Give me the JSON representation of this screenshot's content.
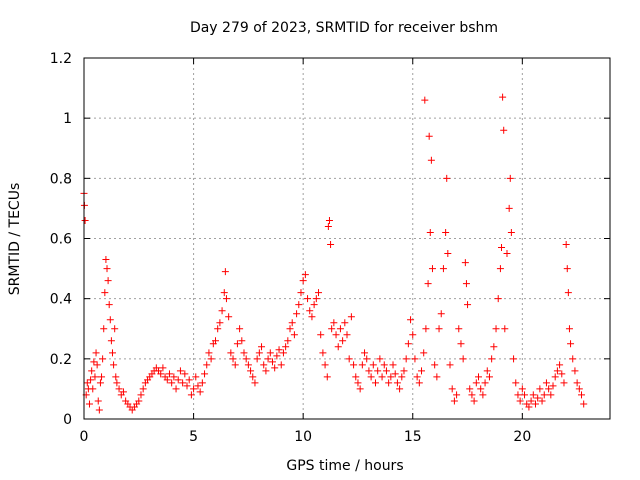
{
  "chart_data": {
    "type": "scatter",
    "title": "Day 279 of 2023, SRMTID for receiver bshm",
    "xlabel": "GPS time / hours",
    "ylabel": "SRMTID / TECUs",
    "xlim": [
      0,
      24
    ],
    "ylim": [
      0,
      1.2
    ],
    "x_ticks": [
      0,
      5,
      10,
      15,
      20
    ],
    "x_tick_labels": [
      "0",
      "5",
      "10",
      "15",
      "20"
    ],
    "y_ticks": [
      0,
      0.2,
      0.4,
      0.6,
      0.8,
      1.0,
      1.2
    ],
    "y_tick_labels": [
      "0",
      "0.2",
      "0.4",
      "0.6",
      "0.8",
      "1",
      "1.2"
    ],
    "grid": true,
    "marker": "+",
    "color": "#ff0000",
    "series": [
      {
        "name": "SRMTID",
        "points": [
          [
            0.0,
            0.75
          ],
          [
            0.02,
            0.71
          ],
          [
            0.05,
            0.66
          ],
          [
            0.1,
            0.08
          ],
          [
            0.15,
            0.12
          ],
          [
            0.2,
            0.1
          ],
          [
            0.25,
            0.05
          ],
          [
            0.3,
            0.13
          ],
          [
            0.35,
            0.16
          ],
          [
            0.4,
            0.1
          ],
          [
            0.45,
            0.19
          ],
          [
            0.5,
            0.14
          ],
          [
            0.55,
            0.22
          ],
          [
            0.6,
            0.18
          ],
          [
            0.65,
            0.06
          ],
          [
            0.7,
            0.03
          ],
          [
            0.75,
            0.12
          ],
          [
            0.8,
            0.14
          ],
          [
            0.85,
            0.2
          ],
          [
            0.9,
            0.3
          ],
          [
            0.95,
            0.42
          ],
          [
            1.0,
            0.53
          ],
          [
            1.05,
            0.5
          ],
          [
            1.1,
            0.46
          ],
          [
            1.15,
            0.38
          ],
          [
            1.2,
            0.33
          ],
          [
            1.25,
            0.26
          ],
          [
            1.3,
            0.22
          ],
          [
            1.35,
            0.18
          ],
          [
            1.4,
            0.3
          ],
          [
            1.45,
            0.14
          ],
          [
            1.5,
            0.12
          ],
          [
            1.6,
            0.1
          ],
          [
            1.7,
            0.08
          ],
          [
            1.8,
            0.09
          ],
          [
            1.9,
            0.06
          ],
          [
            2.0,
            0.05
          ],
          [
            2.1,
            0.04
          ],
          [
            2.2,
            0.03
          ],
          [
            2.3,
            0.04
          ],
          [
            2.4,
            0.05
          ],
          [
            2.5,
            0.06
          ],
          [
            2.6,
            0.08
          ],
          [
            2.7,
            0.1
          ],
          [
            2.8,
            0.12
          ],
          [
            2.9,
            0.13
          ],
          [
            3.0,
            0.14
          ],
          [
            3.1,
            0.15
          ],
          [
            3.2,
            0.16
          ],
          [
            3.3,
            0.17
          ],
          [
            3.4,
            0.16
          ],
          [
            3.5,
            0.15
          ],
          [
            3.6,
            0.17
          ],
          [
            3.7,
            0.14
          ],
          [
            3.8,
            0.13
          ],
          [
            3.9,
            0.15
          ],
          [
            4.0,
            0.12
          ],
          [
            4.1,
            0.14
          ],
          [
            4.2,
            0.1
          ],
          [
            4.3,
            0.13
          ],
          [
            4.4,
            0.16
          ],
          [
            4.5,
            0.12
          ],
          [
            4.6,
            0.15
          ],
          [
            4.7,
            0.11
          ],
          [
            4.8,
            0.13
          ],
          [
            4.9,
            0.08
          ],
          [
            5.0,
            0.1
          ],
          [
            5.1,
            0.14
          ],
          [
            5.2,
            0.11
          ],
          [
            5.3,
            0.09
          ],
          [
            5.4,
            0.12
          ],
          [
            5.5,
            0.15
          ],
          [
            5.6,
            0.18
          ],
          [
            5.7,
            0.22
          ],
          [
            5.8,
            0.2
          ],
          [
            5.9,
            0.25
          ],
          [
            6.0,
            0.26
          ],
          [
            6.1,
            0.3
          ],
          [
            6.2,
            0.32
          ],
          [
            6.3,
            0.36
          ],
          [
            6.4,
            0.42
          ],
          [
            6.45,
            0.49
          ],
          [
            6.5,
            0.4
          ],
          [
            6.6,
            0.34
          ],
          [
            6.7,
            0.22
          ],
          [
            6.8,
            0.2
          ],
          [
            6.9,
            0.18
          ],
          [
            7.0,
            0.25
          ],
          [
            7.1,
            0.3
          ],
          [
            7.2,
            0.26
          ],
          [
            7.3,
            0.22
          ],
          [
            7.4,
            0.2
          ],
          [
            7.5,
            0.18
          ],
          [
            7.6,
            0.16
          ],
          [
            7.7,
            0.14
          ],
          [
            7.8,
            0.12
          ],
          [
            7.9,
            0.2
          ],
          [
            8.0,
            0.22
          ],
          [
            8.1,
            0.24
          ],
          [
            8.2,
            0.18
          ],
          [
            8.3,
            0.16
          ],
          [
            8.4,
            0.2
          ],
          [
            8.5,
            0.22
          ],
          [
            8.6,
            0.19
          ],
          [
            8.7,
            0.17
          ],
          [
            8.8,
            0.21
          ],
          [
            8.9,
            0.23
          ],
          [
            9.0,
            0.18
          ],
          [
            9.1,
            0.22
          ],
          [
            9.2,
            0.24
          ],
          [
            9.3,
            0.26
          ],
          [
            9.4,
            0.3
          ],
          [
            9.5,
            0.32
          ],
          [
            9.6,
            0.28
          ],
          [
            9.7,
            0.35
          ],
          [
            9.8,
            0.38
          ],
          [
            9.9,
            0.42
          ],
          [
            10.0,
            0.46
          ],
          [
            10.1,
            0.48
          ],
          [
            10.2,
            0.4
          ],
          [
            10.3,
            0.36
          ],
          [
            10.4,
            0.34
          ],
          [
            10.5,
            0.38
          ],
          [
            10.6,
            0.4
          ],
          [
            10.7,
            0.42
          ],
          [
            10.8,
            0.28
          ],
          [
            10.9,
            0.22
          ],
          [
            11.0,
            0.18
          ],
          [
            11.1,
            0.14
          ],
          [
            11.15,
            0.64
          ],
          [
            11.2,
            0.66
          ],
          [
            11.25,
            0.58
          ],
          [
            11.3,
            0.3
          ],
          [
            11.4,
            0.32
          ],
          [
            11.5,
            0.28
          ],
          [
            11.6,
            0.24
          ],
          [
            11.7,
            0.3
          ],
          [
            11.8,
            0.26
          ],
          [
            11.9,
            0.32
          ],
          [
            12.0,
            0.28
          ],
          [
            12.1,
            0.2
          ],
          [
            12.2,
            0.34
          ],
          [
            12.3,
            0.18
          ],
          [
            12.4,
            0.14
          ],
          [
            12.5,
            0.12
          ],
          [
            12.6,
            0.1
          ],
          [
            12.7,
            0.18
          ],
          [
            12.8,
            0.22
          ],
          [
            12.9,
            0.2
          ],
          [
            13.0,
            0.16
          ],
          [
            13.1,
            0.14
          ],
          [
            13.2,
            0.18
          ],
          [
            13.3,
            0.12
          ],
          [
            13.4,
            0.16
          ],
          [
            13.5,
            0.2
          ],
          [
            13.6,
            0.14
          ],
          [
            13.7,
            0.18
          ],
          [
            13.8,
            0.16
          ],
          [
            13.9,
            0.12
          ],
          [
            14.0,
            0.14
          ],
          [
            14.1,
            0.18
          ],
          [
            14.2,
            0.15
          ],
          [
            14.3,
            0.12
          ],
          [
            14.4,
            0.1
          ],
          [
            14.5,
            0.14
          ],
          [
            14.6,
            0.16
          ],
          [
            14.7,
            0.2
          ],
          [
            14.8,
            0.25
          ],
          [
            14.9,
            0.33
          ],
          [
            15.0,
            0.28
          ],
          [
            15.1,
            0.2
          ],
          [
            15.2,
            0.14
          ],
          [
            15.3,
            0.12
          ],
          [
            15.4,
            0.16
          ],
          [
            15.5,
            0.22
          ],
          [
            15.55,
            1.06
          ],
          [
            15.6,
            0.3
          ],
          [
            15.7,
            0.45
          ],
          [
            15.75,
            0.94
          ],
          [
            15.8,
            0.62
          ],
          [
            15.85,
            0.86
          ],
          [
            15.9,
            0.5
          ],
          [
            16.0,
            0.18
          ],
          [
            16.1,
            0.14
          ],
          [
            16.2,
            0.3
          ],
          [
            16.3,
            0.35
          ],
          [
            16.4,
            0.5
          ],
          [
            16.5,
            0.62
          ],
          [
            16.55,
            0.8
          ],
          [
            16.6,
            0.55
          ],
          [
            16.7,
            0.18
          ],
          [
            16.8,
            0.1
          ],
          [
            16.9,
            0.06
          ],
          [
            17.0,
            0.08
          ],
          [
            17.1,
            0.3
          ],
          [
            17.2,
            0.25
          ],
          [
            17.3,
            0.2
          ],
          [
            17.4,
            0.52
          ],
          [
            17.45,
            0.45
          ],
          [
            17.5,
            0.38
          ],
          [
            17.6,
            0.1
          ],
          [
            17.7,
            0.08
          ],
          [
            17.8,
            0.06
          ],
          [
            17.9,
            0.12
          ],
          [
            18.0,
            0.14
          ],
          [
            18.1,
            0.1
          ],
          [
            18.2,
            0.08
          ],
          [
            18.3,
            0.12
          ],
          [
            18.4,
            0.16
          ],
          [
            18.5,
            0.14
          ],
          [
            18.6,
            0.2
          ],
          [
            18.7,
            0.24
          ],
          [
            18.8,
            0.3
          ],
          [
            18.9,
            0.4
          ],
          [
            19.0,
            0.5
          ],
          [
            19.05,
            0.57
          ],
          [
            19.1,
            1.07
          ],
          [
            19.15,
            0.96
          ],
          [
            19.2,
            0.3
          ],
          [
            19.3,
            0.55
          ],
          [
            19.4,
            0.7
          ],
          [
            19.45,
            0.8
          ],
          [
            19.5,
            0.62
          ],
          [
            19.6,
            0.2
          ],
          [
            19.7,
            0.12
          ],
          [
            19.8,
            0.08
          ],
          [
            19.9,
            0.06
          ],
          [
            20.0,
            0.1
          ],
          [
            20.1,
            0.08
          ],
          [
            20.2,
            0.05
          ],
          [
            20.3,
            0.04
          ],
          [
            20.4,
            0.06
          ],
          [
            20.5,
            0.08
          ],
          [
            20.6,
            0.05
          ],
          [
            20.7,
            0.07
          ],
          [
            20.8,
            0.1
          ],
          [
            20.9,
            0.06
          ],
          [
            21.0,
            0.08
          ],
          [
            21.1,
            0.12
          ],
          [
            21.2,
            0.1
          ],
          [
            21.3,
            0.08
          ],
          [
            21.4,
            0.11
          ],
          [
            21.5,
            0.14
          ],
          [
            21.6,
            0.16
          ],
          [
            21.7,
            0.18
          ],
          [
            21.8,
            0.15
          ],
          [
            21.9,
            0.12
          ],
          [
            22.0,
            0.58
          ],
          [
            22.05,
            0.5
          ],
          [
            22.1,
            0.42
          ],
          [
            22.15,
            0.3
          ],
          [
            22.2,
            0.25
          ],
          [
            22.3,
            0.2
          ],
          [
            22.4,
            0.16
          ],
          [
            22.5,
            0.12
          ],
          [
            22.6,
            0.1
          ],
          [
            22.7,
            0.08
          ],
          [
            22.8,
            0.05
          ]
        ]
      }
    ]
  }
}
